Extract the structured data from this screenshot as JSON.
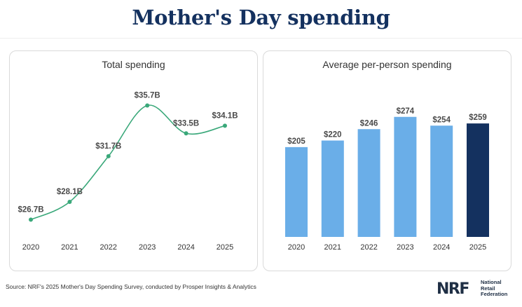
{
  "title": "Mother's Day spending",
  "colors": {
    "title": "#14315f",
    "line": "#3aa87a",
    "bar": "#6aaee8",
    "bar_highlight": "#14315f"
  },
  "chart_data": [
    {
      "type": "line",
      "title": "Total spending",
      "categories": [
        "2020",
        "2021",
        "2022",
        "2023",
        "2024",
        "2025"
      ],
      "values": [
        26.7,
        28.1,
        31.7,
        35.7,
        33.5,
        34.1
      ],
      "labels": [
        "$26.7B",
        "$28.1B",
        "$31.7B",
        "$35.7B",
        "$33.5B",
        "$34.1B"
      ],
      "unit": "billion USD",
      "xlabel": "",
      "ylabel": "",
      "ylim": [
        26,
        36.5
      ],
      "grid": false
    },
    {
      "type": "bar",
      "title": "Average per-person spending",
      "categories": [
        "2020",
        "2021",
        "2022",
        "2023",
        "2024",
        "2025"
      ],
      "values": [
        205,
        220,
        246,
        274,
        254,
        259
      ],
      "labels": [
        "$205",
        "$220",
        "$246",
        "$274",
        "$254",
        "$259"
      ],
      "unit": "USD",
      "xlabel": "",
      "ylabel": "",
      "ylim": [
        0,
        280
      ],
      "highlight": "2025",
      "grid": false
    }
  ],
  "source": "Source: NRF's 2025 Mother's Day Spending Survey, conducted by Prosper Insights & Analytics",
  "logo": {
    "mark": "NRF",
    "line1": "National",
    "line2": "Retail",
    "line3": "Federation"
  }
}
